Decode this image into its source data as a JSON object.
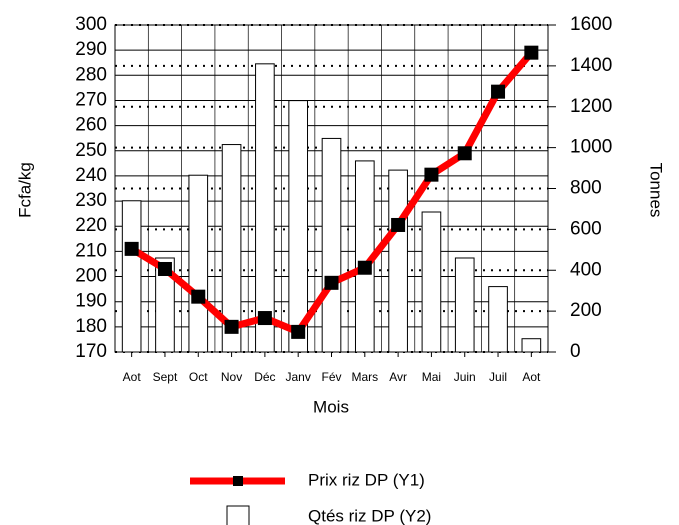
{
  "chart_data": {
    "type": "bar-line",
    "categories": [
      "Aot",
      "Sept",
      "Oct",
      "Nov",
      "Déc",
      "Janv",
      "Fév",
      "Mars",
      "Avr",
      "Mai",
      "Juin",
      "Juil",
      "Aot"
    ],
    "series": [
      {
        "name": "Prix riz DP (Y1)",
        "type": "line",
        "color": "#ff0000",
        "axis": "y1",
        "values": [
          211,
          203,
          192,
          180,
          183.5,
          178,
          197.5,
          203.5,
          220.5,
          240.5,
          249,
          273.5,
          289
        ]
      },
      {
        "name": "Qtés riz DP (Y2)",
        "type": "bar",
        "color": "#ffffff",
        "axis": "y2",
        "values": [
          740,
          460,
          865,
          1015,
          1410,
          1230,
          1045,
          935,
          890,
          685,
          460,
          320,
          65
        ]
      }
    ],
    "xlabel": "Mois",
    "ylabel": "Fcfa/kg",
    "y2label": "Tonnes",
    "ylim": [
      170,
      300
    ],
    "yticks": [
      170,
      180,
      190,
      200,
      210,
      220,
      230,
      240,
      250,
      260,
      270,
      280,
      290,
      300
    ],
    "y2lim": [
      0,
      1600
    ],
    "y2ticks": [
      0,
      200,
      400,
      600,
      800,
      1000,
      1200,
      1400,
      1600
    ],
    "grid": true,
    "legend": "bottom"
  }
}
